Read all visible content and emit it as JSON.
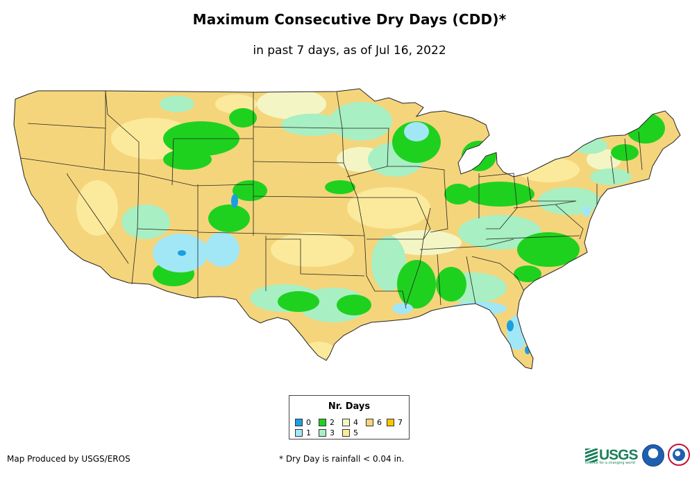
{
  "title": "Maximum Consecutive Dry Days (CDD)*",
  "subtitle": "in past 7 days, as of Jul 16, 2022",
  "legend": {
    "title": "Nr. Days",
    "items": [
      {
        "label": "0",
        "color": "#1a9fe0"
      },
      {
        "label": "1",
        "color": "#a2e7f6"
      },
      {
        "label": "2",
        "color": "#1fd11f"
      },
      {
        "label": "3",
        "color": "#a8efc3"
      },
      {
        "label": "4",
        "color": "#f3f6c4"
      },
      {
        "label": "5",
        "color": "#fbea9b"
      },
      {
        "label": "6",
        "color": "#f5d57b"
      },
      {
        "label": "7",
        "color": "#f7c600"
      }
    ]
  },
  "map": {
    "region": "Contiguous United States",
    "dominant_class": "6",
    "background_color": "#ffffff",
    "border_color": "#222222"
  },
  "footer": {
    "credit": "Map Produced by USGS/EROS",
    "note": "* Dry Day is rainfall < 0.04 in."
  },
  "logos": {
    "usgs": "USGS",
    "usgs_tagline": "science for a changing world",
    "noaa": "noaa",
    "nws": "National Weather Service"
  }
}
